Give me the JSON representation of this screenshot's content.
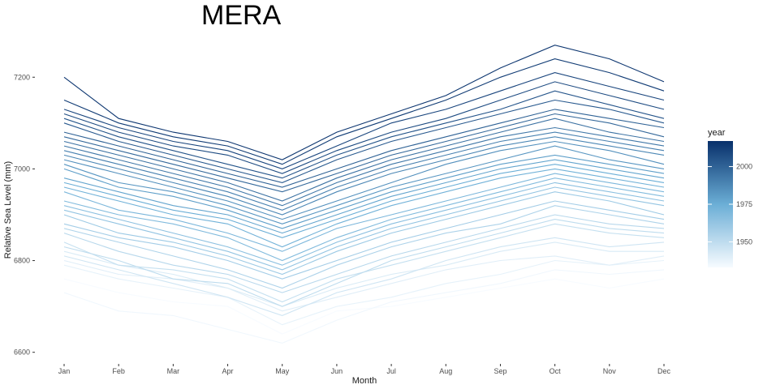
{
  "chart_data": {
    "type": "line",
    "title": "MERA",
    "xlabel": "Month",
    "ylabel": "Relative Sea Level (mm)",
    "categories": [
      "Jan",
      "Feb",
      "Mar",
      "Apr",
      "May",
      "Jun",
      "Jul",
      "Aug",
      "Sep",
      "Oct",
      "Nov",
      "Dec"
    ],
    "y_ticks": [
      6600,
      6800,
      7000,
      7200
    ],
    "ylim": [
      6580,
      7280
    ],
    "grid": false,
    "legend": {
      "title": "year",
      "placement": "right",
      "ticks": [
        1950,
        1975,
        2000
      ],
      "range": [
        1933,
        2017
      ]
    },
    "colors": {
      "low": "#f7fbff",
      "mid": "#6baed6",
      "high": "#08306b"
    },
    "series": [
      {
        "year": 1933,
        "values": [
          6760,
          6730,
          6710,
          6700,
          6640,
          6690,
          6700,
          6720,
          6740,
          6760,
          6740,
          6760
        ]
      },
      {
        "year": 1935,
        "values": [
          6730,
          6690,
          6680,
          6650,
          6620,
          6670,
          6710,
          6730,
          6750,
          6780,
          6770,
          6780
        ]
      },
      {
        "year": 1938,
        "values": [
          6790,
          6760,
          6740,
          6720,
          6660,
          6700,
          6720,
          6750,
          6770,
          6800,
          6790,
          6800
        ]
      },
      {
        "year": 1940,
        "values": [
          6800,
          6770,
          6760,
          6740,
          6690,
          6720,
          6750,
          6780,
          6800,
          6810,
          6790,
          6810
        ]
      },
      {
        "year": 1942,
        "values": [
          6820,
          6790,
          6770,
          6740,
          6700,
          6740,
          6770,
          6790,
          6820,
          6840,
          6820,
          6820
        ]
      },
      {
        "year": 1945,
        "values": [
          6810,
          6780,
          6750,
          6720,
          6680,
          6730,
          6760,
          6800,
          6830,
          6850,
          6830,
          6840
        ]
      },
      {
        "year": 1948,
        "values": [
          6840,
          6790,
          6780,
          6760,
          6710,
          6760,
          6790,
          6820,
          6850,
          6880,
          6860,
          6850
        ]
      },
      {
        "year": 1950,
        "values": [
          6830,
          6800,
          6760,
          6750,
          6700,
          6750,
          6800,
          6830,
          6860,
          6890,
          6870,
          6860
        ]
      },
      {
        "year": 1952,
        "values": [
          6860,
          6820,
          6790,
          6770,
          6730,
          6770,
          6810,
          6840,
          6870,
          6900,
          6880,
          6870
        ]
      },
      {
        "year": 1955,
        "values": [
          6870,
          6840,
          6810,
          6780,
          6740,
          6790,
          6830,
          6860,
          6880,
          6920,
          6900,
          6880
        ]
      },
      {
        "year": 1958,
        "values": [
          6880,
          6850,
          6830,
          6800,
          6760,
          6800,
          6840,
          6870,
          6900,
          6930,
          6910,
          6890
        ]
      },
      {
        "year": 1960,
        "values": [
          6900,
          6860,
          6840,
          6810,
          6770,
          6820,
          6860,
          6890,
          6920,
          6950,
          6930,
          6900
        ]
      },
      {
        "year": 1963,
        "values": [
          6910,
          6880,
          6850,
          6820,
          6780,
          6830,
          6870,
          6900,
          6930,
          6960,
          6940,
          6920
        ]
      },
      {
        "year": 1965,
        "values": [
          6920,
          6890,
          6860,
          6830,
          6790,
          6840,
          6880,
          6910,
          6940,
          6970,
          6950,
          6930
        ]
      },
      {
        "year": 1968,
        "values": [
          6930,
          6900,
          6880,
          6850,
          6800,
          6850,
          6890,
          6920,
          6950,
          6980,
          6960,
          6940
        ]
      },
      {
        "year": 1970,
        "values": [
          6950,
          6910,
          6890,
          6860,
          6820,
          6870,
          6900,
          6930,
          6960,
          6990,
          6970,
          6950
        ]
      },
      {
        "year": 1973,
        "values": [
          6960,
          6930,
          6900,
          6880,
          6830,
          6880,
          6920,
          6950,
          6980,
          7000,
          6980,
          6960
        ]
      },
      {
        "year": 1975,
        "values": [
          6970,
          6940,
          6910,
          6890,
          6850,
          6890,
          6930,
          6960,
          6990,
          7010,
          6990,
          6970
        ]
      },
      {
        "year": 1978,
        "values": [
          6980,
          6950,
          6920,
          6900,
          6860,
          6900,
          6940,
          6970,
          7000,
          7020,
          7000,
          6980
        ]
      },
      {
        "year": 1980,
        "values": [
          7000,
          6960,
          6940,
          6910,
          6870,
          6910,
          6950,
          6980,
          7010,
          7030,
          7010,
          6990
        ]
      },
      {
        "year": 1983,
        "values": [
          7010,
          6970,
          6950,
          6920,
          6880,
          6920,
          6960,
          6990,
          7020,
          7050,
          7020,
          7000
        ]
      },
      {
        "year": 1985,
        "values": [
          7020,
          6990,
          6960,
          6930,
          6890,
          6930,
          6970,
          7010,
          7040,
          7060,
          7040,
          7010
        ]
      },
      {
        "year": 1988,
        "values": [
          7030,
          7000,
          6970,
          6940,
          6900,
          6950,
          6990,
          7020,
          7050,
          7070,
          7050,
          7030
        ]
      },
      {
        "year": 1990,
        "values": [
          7040,
          7010,
          6980,
          6950,
          6910,
          6960,
          7000,
          7030,
          7060,
          7080,
          7060,
          7040
        ]
      },
      {
        "year": 1993,
        "values": [
          7050,
          7020,
          6990,
          6960,
          6920,
          6970,
          7010,
          7040,
          7070,
          7090,
          7070,
          7050
        ]
      },
      {
        "year": 1995,
        "values": [
          7060,
          7030,
          7000,
          6970,
          6930,
          6980,
          7020,
          7050,
          7080,
          7110,
          7080,
          7060
        ]
      },
      {
        "year": 1998,
        "values": [
          7070,
          7040,
          7010,
          6980,
          6950,
          6990,
          7030,
          7060,
          7090,
          7120,
          7100,
          7070
        ]
      },
      {
        "year": 2000,
        "values": [
          7080,
          7050,
          7020,
          6990,
          6960,
          7000,
          7040,
          7070,
          7100,
          7130,
          7110,
          7090
        ]
      },
      {
        "year": 2003,
        "values": [
          7100,
          7060,
          7030,
          7000,
          6970,
          7020,
          7060,
          7090,
          7120,
          7150,
          7130,
          7100
        ]
      },
      {
        "year": 2005,
        "values": [
          7110,
          7070,
          7040,
          7010,
          6980,
          7030,
          7070,
          7100,
          7130,
          7170,
          7140,
          7110
        ]
      },
      {
        "year": 2008,
        "values": [
          7120,
          7080,
          7050,
          7030,
          6990,
          7040,
          7080,
          7110,
          7150,
          7190,
          7160,
          7130
        ]
      },
      {
        "year": 2010,
        "values": [
          7130,
          7090,
          7060,
          7040,
          7000,
          7050,
          7100,
          7130,
          7170,
          7210,
          7180,
          7150
        ]
      },
      {
        "year": 2013,
        "values": [
          7150,
          7100,
          7070,
          7050,
          7010,
          7070,
          7110,
          7150,
          7200,
          7240,
          7210,
          7170
        ]
      },
      {
        "year": 2015,
        "values": [
          7200,
          7110,
          7080,
          7060,
          7020,
          7080,
          7120,
          7160,
          7220,
          7270,
          7240,
          7190
        ]
      }
    ]
  }
}
